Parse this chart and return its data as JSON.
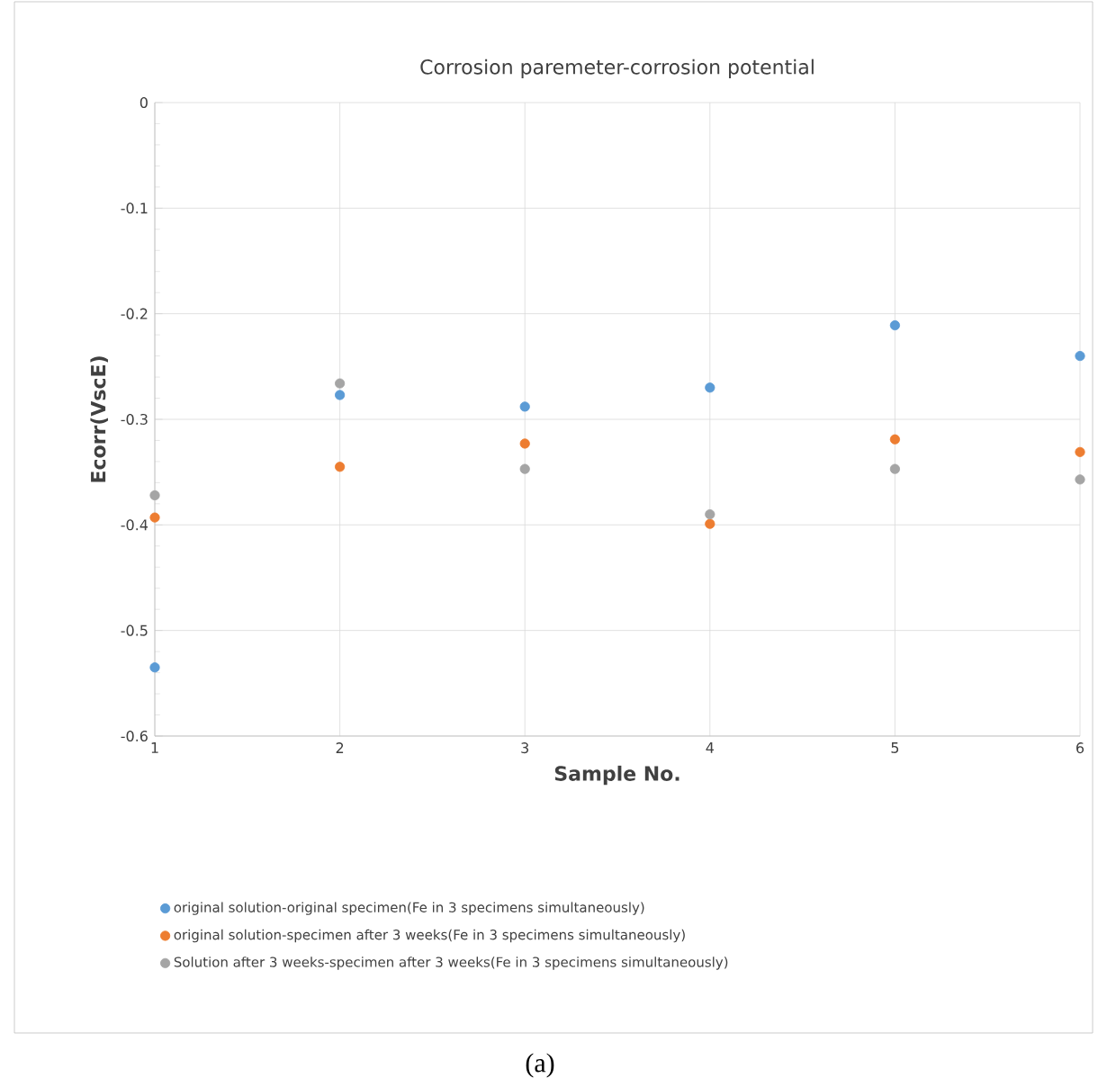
{
  "chart_data": {
    "type": "scatter",
    "title": "Corrosion paremeter-corrosion potential",
    "xlabel": "Sample No.",
    "ylabel": "Ecorr(VscE)",
    "x": [
      1,
      2,
      3,
      4,
      5,
      6
    ],
    "series": [
      {
        "name": "original solution-original specimen(Fe in 3 specimens simultaneously)",
        "color": "#5b9bd5",
        "values": [
          -0.535,
          -0.277,
          -0.288,
          -0.27,
          -0.211,
          -0.24
        ]
      },
      {
        "name": "original solution-specimen after 3 weeks(Fe in 3 specimens simultaneously)",
        "color": "#ed7d31",
        "values": [
          -0.393,
          -0.345,
          -0.323,
          -0.399,
          -0.319,
          -0.331
        ]
      },
      {
        "name": "Solution after 3 weeks-specimen after 3 weeks(Fe in 3 specimens simultaneously)",
        "color": "#a5a5a5",
        "values": [
          -0.372,
          -0.266,
          -0.347,
          -0.39,
          -0.347,
          -0.357
        ]
      }
    ],
    "xlim": [
      1,
      6
    ],
    "xticks": [
      1,
      2,
      3,
      4,
      5,
      6
    ],
    "ylim": [
      -0.6,
      0
    ],
    "yticks": [
      0,
      -0.1,
      -0.2,
      -0.3,
      -0.4,
      -0.5,
      -0.6
    ],
    "grid": true,
    "legend": "bottom",
    "marker": "circle",
    "annotations": [
      "(a)"
    ]
  }
}
